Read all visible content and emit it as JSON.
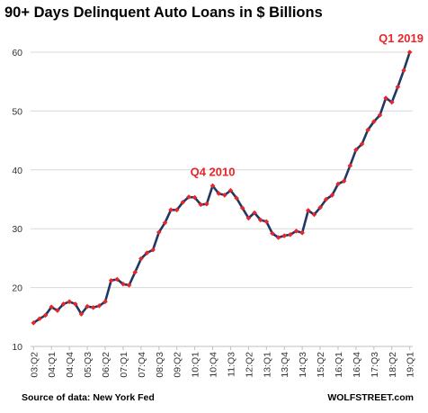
{
  "chart_data": {
    "type": "line",
    "title": "90+ Days Delinquent Auto Loans in $ Billions",
    "xlabel": "",
    "ylabel": "",
    "ylim": [
      10,
      60
    ],
    "yticks": [
      10,
      20,
      30,
      40,
      50,
      60
    ],
    "grid": "horizontal",
    "legend": "none",
    "colors": {
      "line": "#1f3864",
      "marker": "#e8262a",
      "annotation": "#e8262a",
      "grid": "#d9d9d9"
    },
    "x_tick_labels": [
      "03:Q2",
      "04:Q1",
      "04:Q4",
      "05:Q3",
      "06:Q2",
      "07:Q1",
      "07:Q4",
      "08:Q3",
      "09:Q2",
      "10:Q1",
      "10:Q4",
      "11:Q3",
      "12:Q2",
      "13:Q1",
      "13:Q4",
      "14:Q3",
      "15:Q2",
      "16:Q1",
      "16:Q4",
      "17:Q3",
      "18:Q2",
      "19:Q1"
    ],
    "x": [
      "03:Q2",
      "03:Q3",
      "03:Q4",
      "04:Q1",
      "04:Q2",
      "04:Q3",
      "04:Q4",
      "05:Q1",
      "05:Q2",
      "05:Q3",
      "05:Q4",
      "06:Q1",
      "06:Q2",
      "06:Q3",
      "06:Q4",
      "07:Q1",
      "07:Q2",
      "07:Q3",
      "07:Q4",
      "08:Q1",
      "08:Q2",
      "08:Q3",
      "08:Q4",
      "09:Q1",
      "09:Q2",
      "09:Q3",
      "09:Q4",
      "10:Q1",
      "10:Q2",
      "10:Q3",
      "10:Q4",
      "11:Q1",
      "11:Q2",
      "11:Q3",
      "11:Q4",
      "12:Q1",
      "12:Q2",
      "12:Q3",
      "12:Q4",
      "13:Q1",
      "13:Q2",
      "13:Q3",
      "13:Q4",
      "14:Q1",
      "14:Q2",
      "14:Q3",
      "14:Q4",
      "15:Q1",
      "15:Q2",
      "15:Q3",
      "15:Q4",
      "16:Q1",
      "16:Q2",
      "16:Q3",
      "16:Q4",
      "17:Q1",
      "17:Q2",
      "17:Q3",
      "17:Q4",
      "18:Q1",
      "18:Q2",
      "18:Q3",
      "18:Q4",
      "19:Q1"
    ],
    "series": [
      {
        "values": [
          14.0,
          14.7,
          15.3,
          16.7,
          16.1,
          17.2,
          17.6,
          17.2,
          15.5,
          16.8,
          16.6,
          16.9,
          17.6,
          21.2,
          21.4,
          20.6,
          20.4,
          22.6,
          24.9,
          25.9,
          26.4,
          29.4,
          31.0,
          33.2,
          33.2,
          34.5,
          35.4,
          35.3,
          34.1,
          34.2,
          37.3,
          36.0,
          35.7,
          36.5,
          35.2,
          33.5,
          31.8,
          32.7,
          31.5,
          31.2,
          29.2,
          28.5,
          28.8,
          29.0,
          29.6,
          29.3,
          33.1,
          32.4,
          33.6,
          35.0,
          35.7,
          37.6,
          38.1,
          40.7,
          43.4,
          44.4,
          46.8,
          48.2,
          49.3,
          52.2,
          51.5,
          54.1,
          56.9,
          60.0
        ]
      }
    ],
    "annotations": [
      {
        "text": "Q4 2010",
        "x": "10:Q4",
        "y": 37.3
      },
      {
        "text": "Q1 2019",
        "x": "19:Q1",
        "y": 60.0
      }
    ]
  },
  "footer": {
    "source": "Source of data: New York Fed",
    "watermark": "WOLFSTREET.com"
  }
}
